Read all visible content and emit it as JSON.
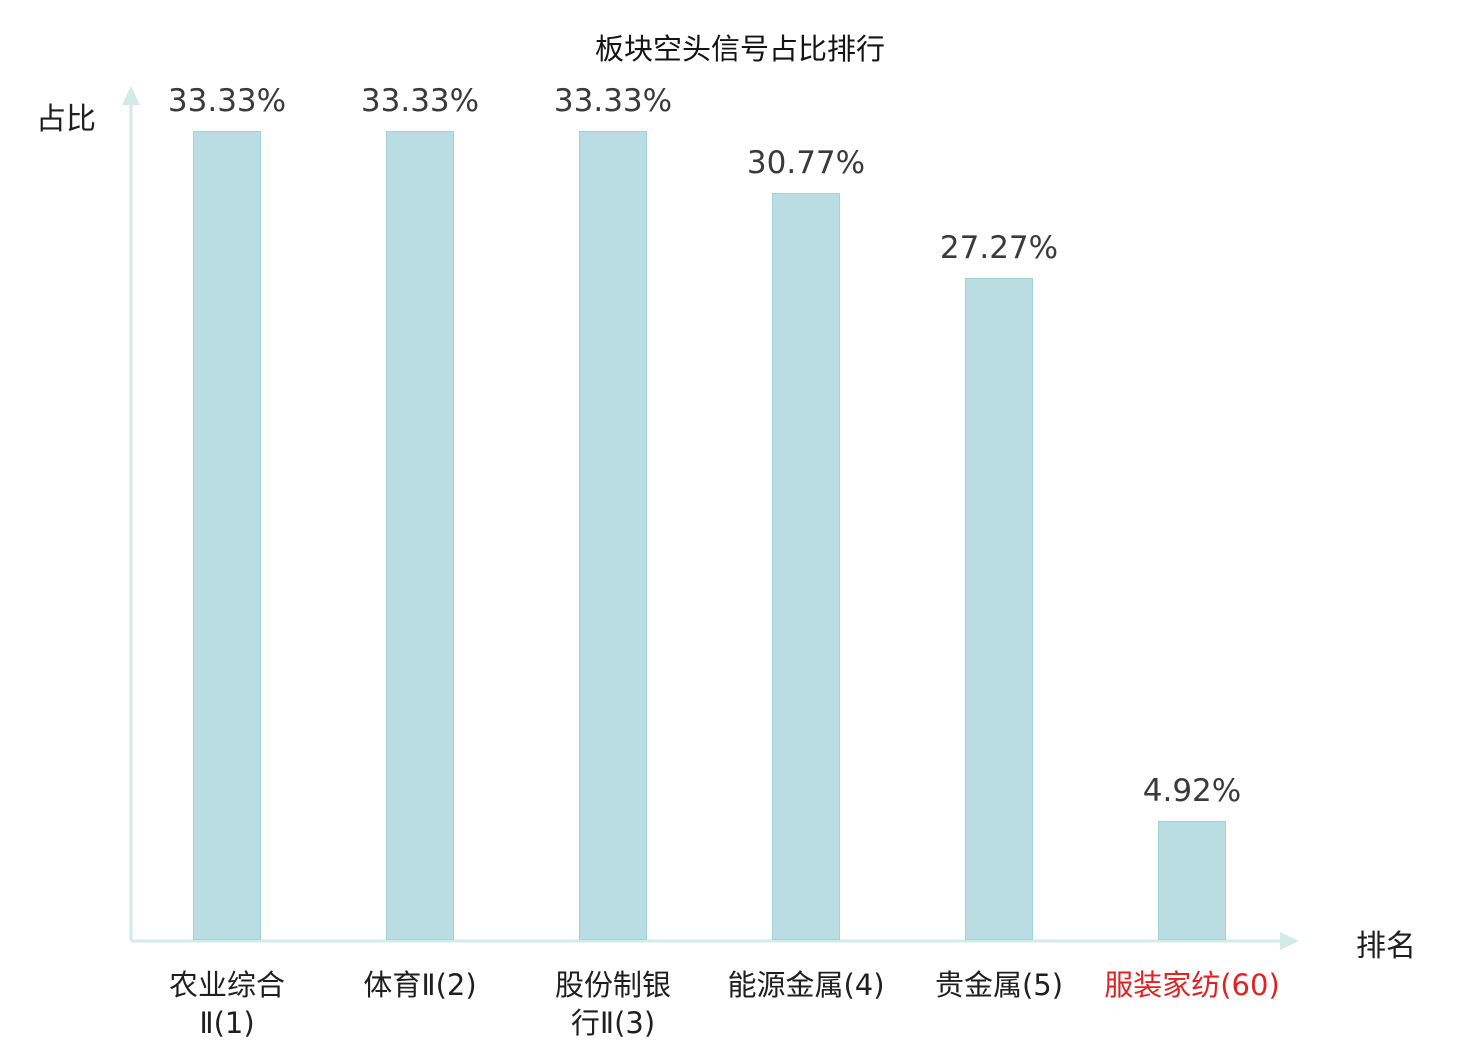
{
  "chart_data": {
    "type": "bar",
    "title": "板块空头信号占比排行",
    "xlabel": "排名",
    "ylabel": "占比",
    "categories": [
      "农业综合Ⅱ(1)",
      "体育Ⅱ(2)",
      "股份制银行Ⅱ(3)",
      "能源金属(4)",
      "贵金属(5)",
      "服装家纺(60)"
    ],
    "category_lines": [
      [
        "农业综合",
        "Ⅱ(1)"
      ],
      [
        "体育Ⅱ(2)"
      ],
      [
        "股份制银",
        "行Ⅱ(3)"
      ],
      [
        "能源金属(4)"
      ],
      [
        "贵金属(5)"
      ],
      [
        "服装家纺(60)"
      ]
    ],
    "values": [
      33.33,
      33.33,
      33.33,
      30.77,
      27.27,
      4.92
    ],
    "value_labels": [
      "33.33%",
      "33.33%",
      "33.33%",
      "30.77%",
      "27.27%",
      "4.92%"
    ],
    "ylim": [
      0,
      35
    ],
    "grid": false,
    "legend": "none",
    "highlight_last_category": true
  },
  "colors": {
    "bar_fill": "#b9dde2",
    "bar_border": "#a2d3da",
    "axis": "#d2ebe5",
    "value_label": "#3a3a3a",
    "category_label": "#1f1f1f",
    "highlight_category": "#e12222",
    "title": "#141414"
  }
}
